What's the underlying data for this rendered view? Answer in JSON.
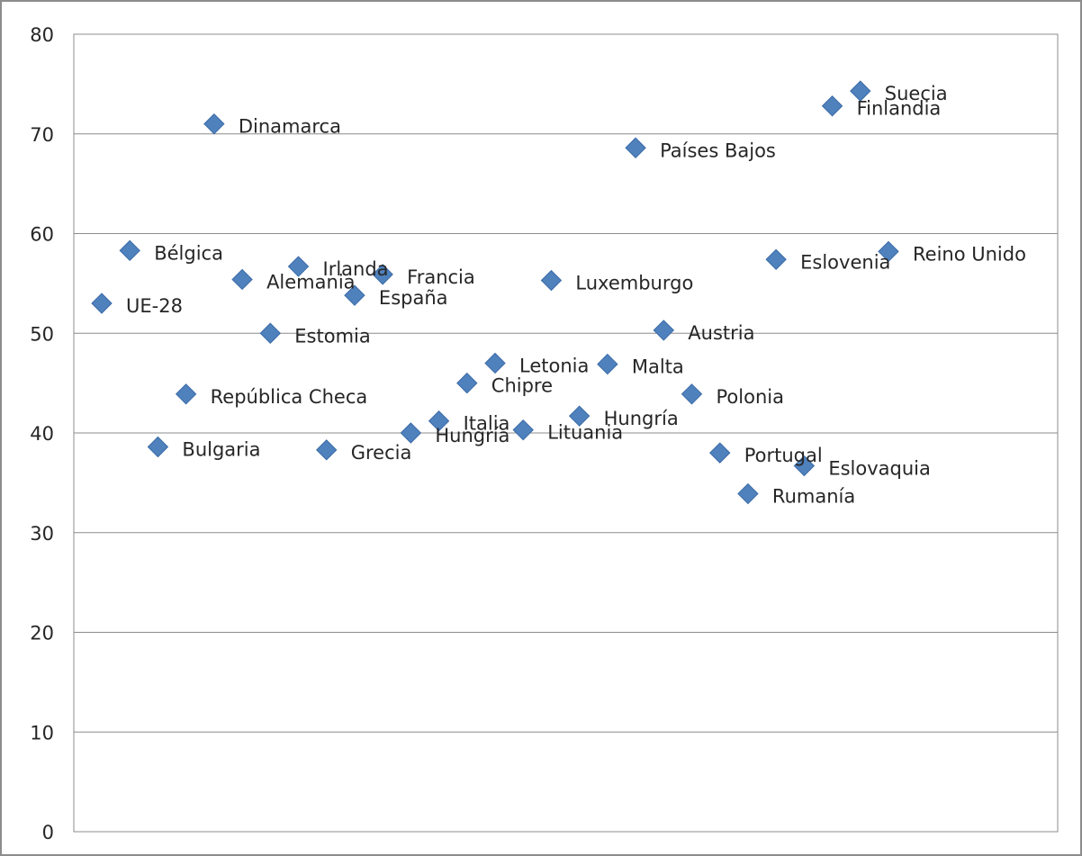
{
  "chart_data": {
    "type": "scatter",
    "title": "",
    "xlabel": "",
    "ylabel": "",
    "ylim": [
      0,
      80
    ],
    "y_ticks": [
      0,
      10,
      20,
      30,
      40,
      50,
      60,
      70,
      80
    ],
    "grid": true,
    "legend": "none",
    "marker": "diamond",
    "colors": {
      "marker": "#4f81bd",
      "grid": "#8c8c8c",
      "text": "#262626"
    },
    "points": [
      {
        "label": "UE-28",
        "x": 1,
        "y": 53.0
      },
      {
        "label": "Bélgica",
        "x": 2,
        "y": 58.3
      },
      {
        "label": "Bulgaria",
        "x": 3,
        "y": 38.6
      },
      {
        "label": "República Checa",
        "x": 4,
        "y": 43.9
      },
      {
        "label": "Dinamarca",
        "x": 5,
        "y": 71.0
      },
      {
        "label": "Alemania",
        "x": 6,
        "y": 55.4
      },
      {
        "label": "Estomia",
        "x": 7,
        "y": 50.0
      },
      {
        "label": "Irlanda",
        "x": 8,
        "y": 56.7
      },
      {
        "label": "Grecia",
        "x": 9,
        "y": 38.3
      },
      {
        "label": "España",
        "x": 10,
        "y": 53.8
      },
      {
        "label": "Francia",
        "x": 11,
        "y": 55.9
      },
      {
        "label": "Hungría",
        "x": 12,
        "y": 40.0
      },
      {
        "label": "Italia",
        "x": 13,
        "y": 41.2
      },
      {
        "label": "Chipre",
        "x": 14,
        "y": 45.0
      },
      {
        "label": "Letonia",
        "x": 15,
        "y": 47.0
      },
      {
        "label": "Lituania",
        "x": 16,
        "y": 40.3
      },
      {
        "label": "Luxemburgo",
        "x": 17,
        "y": 55.3
      },
      {
        "label": "Hungría",
        "x": 18,
        "y": 41.7
      },
      {
        "label": "Malta",
        "x": 19,
        "y": 46.9
      },
      {
        "label": "Países Bajos",
        "x": 20,
        "y": 68.6
      },
      {
        "label": "Austria",
        "x": 21,
        "y": 50.3
      },
      {
        "label": "Polonia",
        "x": 22,
        "y": 43.9
      },
      {
        "label": "Portugal",
        "x": 23,
        "y": 38.0
      },
      {
        "label": "Rumanía",
        "x": 24,
        "y": 33.9
      },
      {
        "label": "Eslovenia",
        "x": 25,
        "y": 57.4
      },
      {
        "label": "Eslovaquia",
        "x": 26,
        "y": 36.7
      },
      {
        "label": "Finlandia",
        "x": 27,
        "y": 72.8
      },
      {
        "label": "Suecia",
        "x": 28,
        "y": 74.3
      },
      {
        "label": "Reino Unido",
        "x": 29,
        "y": 58.2
      }
    ]
  }
}
